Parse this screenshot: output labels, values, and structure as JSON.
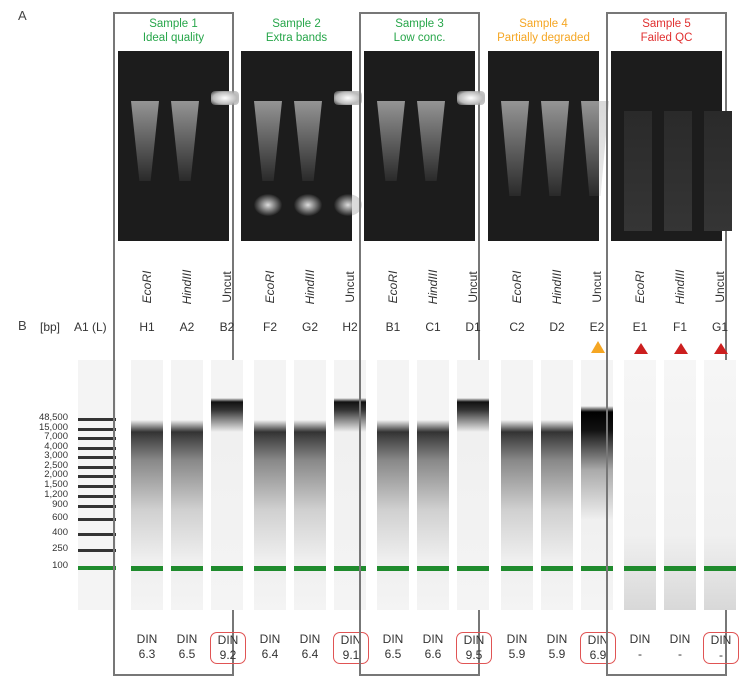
{
  "panel_a_label": "A",
  "panel_b_label": "B",
  "bp_unit": "[bp]",
  "ladder_well": "A1 (L)",
  "ladder_bp": [
    "48,500",
    "15,000",
    "7,000",
    "4,000",
    "3,000",
    "2,500",
    "2,000",
    "1,500",
    "1,200",
    "900",
    "600",
    "400",
    "250",
    "100"
  ],
  "colors": {
    "good": "#27a64a",
    "warn": "#f5a623",
    "fail": "#e03030",
    "din_box": "#e05454",
    "marker": "#1f8b2d"
  },
  "samples": [
    {
      "title": "Sample 1",
      "subtitle": "Ideal quality",
      "status": "good",
      "lanes": [
        {
          "digest": "EcoRI",
          "well": "H1",
          "din": "6.3",
          "boxed": false
        },
        {
          "digest": "HindIII",
          "well": "A2",
          "din": "6.5",
          "boxed": false
        },
        {
          "digest": "Uncut",
          "well": "B2",
          "din": "9.2",
          "boxed": true
        }
      ]
    },
    {
      "title": "Sample 2",
      "subtitle": "Extra bands",
      "status": "good",
      "lanes": [
        {
          "digest": "EcoRI",
          "well": "F2",
          "din": "6.4",
          "boxed": false
        },
        {
          "digest": "HindIII",
          "well": "G2",
          "din": "6.4",
          "boxed": false
        },
        {
          "digest": "Uncut",
          "well": "H2",
          "din": "9.1",
          "boxed": true
        }
      ]
    },
    {
      "title": "Sample 3",
      "subtitle": "Low conc.",
      "status": "good",
      "lanes": [
        {
          "digest": "EcoRI",
          "well": "B1",
          "din": "6.5",
          "boxed": false
        },
        {
          "digest": "HindIII",
          "well": "C1",
          "din": "6.6",
          "boxed": false
        },
        {
          "digest": "Uncut",
          "well": "D1",
          "din": "9.5",
          "boxed": true
        }
      ]
    },
    {
      "title": "Sample 4",
      "subtitle": "Partially degraded",
      "status": "warn",
      "lanes": [
        {
          "digest": "EcoRI",
          "well": "C2",
          "din": "5.9",
          "boxed": false
        },
        {
          "digest": "HindIII",
          "well": "D2",
          "din": "5.9",
          "boxed": false
        },
        {
          "digest": "Uncut",
          "well": "E2",
          "din": "6.9",
          "boxed": true
        }
      ]
    },
    {
      "title": "Sample 5",
      "subtitle": "Failed QC",
      "status": "fail",
      "lanes": [
        {
          "digest": "EcoRI",
          "well": "E1",
          "din": "-",
          "boxed": false
        },
        {
          "digest": "HindIII",
          "well": "F1",
          "din": "-",
          "boxed": false
        },
        {
          "digest": "Uncut",
          "well": "G1",
          "din": "-",
          "boxed": true
        }
      ]
    }
  ],
  "din_prefix": "DIN",
  "warning_icon": "warning-triangle-icon",
  "alert_icon": "red-alert-triangle-icon"
}
